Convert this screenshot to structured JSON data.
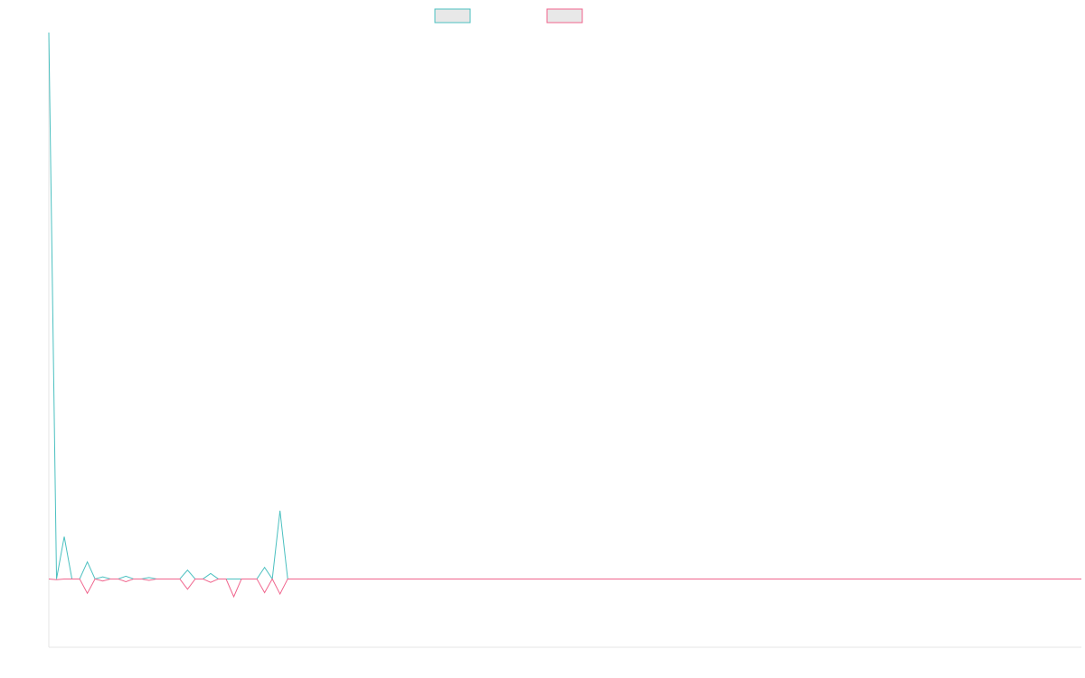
{
  "chart_data": {
    "type": "line",
    "title": "",
    "xlabel": "",
    "ylabel": "",
    "grid": false,
    "legend": "top-center",
    "x_range": [
      0,
      134
    ],
    "ylim": [
      -10,
      80
    ],
    "series": [
      {
        "color": "#4bc0c0",
        "fill": "#e8e8e8",
        "values": [
          80,
          0,
          6.2,
          0,
          0,
          2.5,
          0,
          0.3,
          0,
          0,
          0.4,
          0,
          0,
          0.2,
          0,
          0,
          0,
          0,
          1.3,
          0,
          0,
          0.8,
          0,
          0,
          0,
          0,
          0,
          0,
          1.7,
          0,
          10,
          0,
          0,
          0,
          0,
          0,
          0,
          0,
          0,
          0,
          0,
          0,
          0,
          0,
          0,
          0,
          0,
          0,
          0,
          0,
          0,
          0,
          0,
          0,
          0,
          0,
          0,
          0,
          0,
          0,
          0,
          0,
          0,
          0,
          0,
          0,
          0,
          0,
          0,
          0,
          0,
          0,
          0,
          0,
          0,
          0,
          0,
          0,
          0,
          0,
          0,
          0,
          0,
          0,
          0,
          0,
          0,
          0,
          0,
          0,
          0,
          0,
          0,
          0,
          0,
          0,
          0,
          0,
          0,
          0,
          0,
          0,
          0,
          0,
          0,
          0,
          0,
          0,
          0,
          0,
          0,
          0,
          0,
          0,
          0,
          0,
          0,
          0,
          0,
          0,
          0,
          0,
          0,
          0,
          0,
          0,
          0,
          0,
          0,
          0,
          0,
          0,
          0,
          0,
          0
        ]
      },
      {
        "color": "#f0638c",
        "fill": "#e8e8e8",
        "values": [
          0,
          -0.1,
          0,
          0,
          0,
          -2.1,
          0,
          -0.3,
          0,
          0,
          -0.4,
          0,
          0,
          -0.2,
          0,
          0,
          0,
          0,
          -1.5,
          0,
          0,
          -0.5,
          0,
          0,
          -2.6,
          0,
          0,
          0,
          -2,
          0,
          -2.2,
          0,
          0,
          0,
          0,
          0,
          0,
          0,
          0,
          0,
          0,
          0,
          0,
          0,
          0,
          0,
          0,
          0,
          0,
          0,
          0,
          0,
          0,
          0,
          0,
          0,
          0,
          0,
          0,
          0,
          0,
          0,
          0,
          0,
          0,
          0,
          0,
          0,
          0,
          0,
          0,
          0,
          0,
          0,
          0,
          0,
          0,
          0,
          0,
          0,
          0,
          0,
          0,
          0,
          0,
          0,
          0,
          0,
          0,
          0,
          0,
          0,
          0,
          0,
          0,
          0,
          0,
          0,
          0,
          0,
          0,
          0,
          0,
          0,
          0,
          0,
          0,
          0,
          0,
          0,
          0,
          0,
          0,
          0,
          0,
          0,
          0,
          0,
          0,
          0,
          0,
          0,
          0,
          0,
          0,
          0,
          0,
          0,
          0,
          0,
          0,
          0,
          0,
          0,
          0
        ]
      }
    ]
  }
}
